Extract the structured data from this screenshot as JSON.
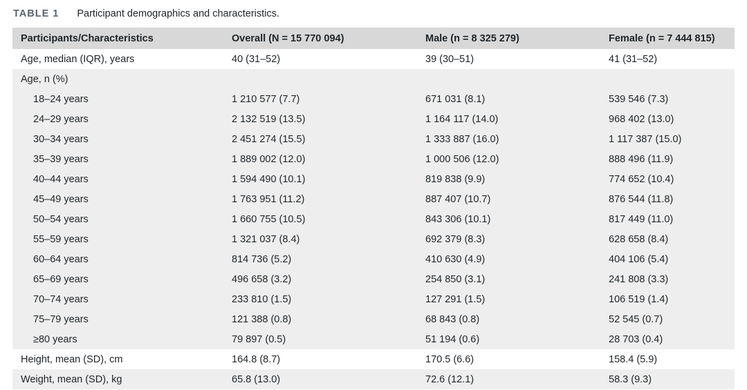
{
  "title": {
    "label": "TABLE 1",
    "caption": "Participant demographics and characteristics."
  },
  "colors": {
    "header_bg": "#d8d8d8",
    "band_bg": "#eeeeee",
    "text": "#1f2428",
    "title_label": "#5a646e"
  },
  "table": {
    "columns": [
      "Participants/Characteristics",
      "Overall (N = 15 770 094)",
      "Male (n = 8 325 279)",
      "Female (n = 7 444 815)"
    ],
    "rows": [
      {
        "label": "Age, median (IQR), years",
        "indent": false,
        "shaded": false,
        "values": [
          "40 (31–52)",
          "39 (30–51)",
          "41 (31–52)"
        ]
      },
      {
        "label": "Age, n (%)",
        "indent": false,
        "shaded": true,
        "values": [
          "",
          "",
          ""
        ]
      },
      {
        "label": "18–24 years",
        "indent": true,
        "shaded": true,
        "values": [
          "1 210 577 (7.7)",
          "671 031 (8.1)",
          "539 546 (7.3)"
        ]
      },
      {
        "label": "24–29 years",
        "indent": true,
        "shaded": true,
        "values": [
          "2 132 519 (13.5)",
          "1 164 117 (14.0)",
          "968 402 (13.0)"
        ]
      },
      {
        "label": "30–34 years",
        "indent": true,
        "shaded": true,
        "values": [
          "2 451 274 (15.5)",
          "1 333 887 (16.0)",
          "1 117 387 (15.0)"
        ]
      },
      {
        "label": "35–39 years",
        "indent": true,
        "shaded": true,
        "values": [
          "1 889 002 (12.0)",
          "1 000 506 (12.0)",
          "888 496 (11.9)"
        ]
      },
      {
        "label": "40–44 years",
        "indent": true,
        "shaded": true,
        "values": [
          "1 594 490 (10.1)",
          "819 838 (9.9)",
          "774 652 (10.4)"
        ]
      },
      {
        "label": "45–49 years",
        "indent": true,
        "shaded": true,
        "values": [
          "1 763 951 (11.2)",
          "887 407 (10.7)",
          "876 544 (11.8)"
        ]
      },
      {
        "label": "50–54 years",
        "indent": true,
        "shaded": true,
        "values": [
          "1 660 755 (10.5)",
          "843 306 (10.1)",
          "817 449 (11.0)"
        ]
      },
      {
        "label": "55–59 years",
        "indent": true,
        "shaded": true,
        "values": [
          "1 321 037 (8.4)",
          "692 379 (8.3)",
          "628 658 (8.4)"
        ]
      },
      {
        "label": "60–64 years",
        "indent": true,
        "shaded": true,
        "values": [
          "814 736 (5.2)",
          "410 630 (4.9)",
          "404 106 (5.4)"
        ]
      },
      {
        "label": "65–69 years",
        "indent": true,
        "shaded": true,
        "values": [
          "496 658 (3.2)",
          "254 850 (3.1)",
          "241 808 (3.3)"
        ]
      },
      {
        "label": "70–74 years",
        "indent": true,
        "shaded": true,
        "values": [
          "233 810 (1.5)",
          "127 291 (1.5)",
          "106 519 (1.4)"
        ]
      },
      {
        "label": "75–79 years",
        "indent": true,
        "shaded": true,
        "values": [
          "121 388 (0.8)",
          "68 843 (0.8)",
          "52 545 (0.7)"
        ]
      },
      {
        "label": "≥80 years",
        "indent": true,
        "shaded": true,
        "values": [
          "79 897 (0.5)",
          "51 194 (0.6)",
          "28 703 (0.4)"
        ]
      },
      {
        "label": "Height, mean (SD), cm",
        "indent": false,
        "shaded": false,
        "values": [
          "164.8 (8.7)",
          "170.5 (6.6)",
          "158.4 (5.9)"
        ]
      },
      {
        "label": "Weight, mean (SD), kg",
        "indent": false,
        "shaded": true,
        "values": [
          "65.8 (13.0)",
          "72.6 (12.1)",
          "58.3 (9.3)"
        ]
      }
    ]
  }
}
